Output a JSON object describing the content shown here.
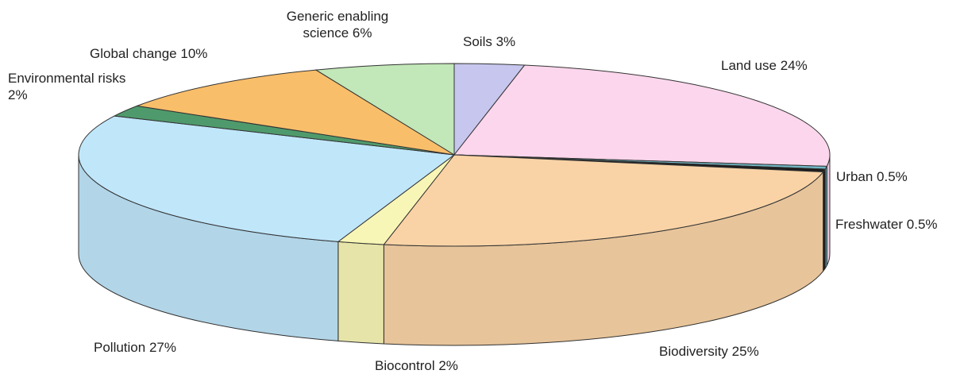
{
  "chart_data": {
    "type": "pie",
    "categories": [
      "Soils",
      "Land use",
      "Urban",
      "Freshwater",
      "Biodiversity",
      "Biocontrol",
      "Pollution",
      "Environmental risks",
      "Global change",
      "Generic enabling science"
    ],
    "values": [
      3,
      24,
      0.5,
      0.5,
      25,
      2,
      27,
      2,
      10,
      6
    ],
    "value_labels": [
      "3%",
      "24%",
      "0.5%",
      "0.5%",
      "25%",
      "2%",
      "27%",
      "2%",
      "10%",
      "6%"
    ],
    "colors": [
      "#c6c6ee",
      "#fcd6ec",
      "#72b8c6",
      "#1c1c1c",
      "#f9d3a6",
      "#f8f6b6",
      "#c0e6fa",
      "#4f9a6c",
      "#f9be6a",
      "#c2e7b8"
    ]
  }
}
